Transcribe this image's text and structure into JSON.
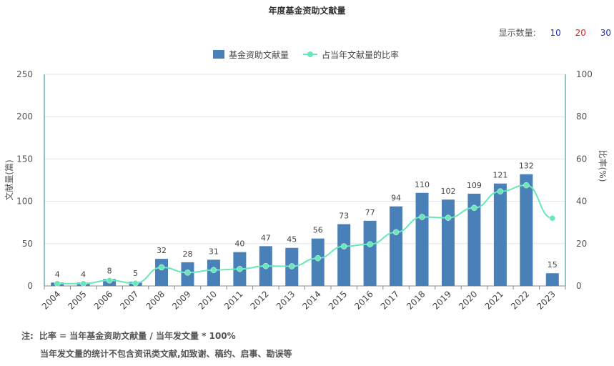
{
  "title": "年度基金资助文献量",
  "display_count": {
    "label": "显示数量:",
    "options": [
      "10",
      "20",
      "30"
    ]
  },
  "notes": {
    "prefix": "注:",
    "line1": "比率 = 当年基金资助文献量 / 当年发文量 * 100%",
    "line2": "当年发文量的统计不包含资讯类文献,如致谢、稿约、启事、勘误等"
  },
  "colors": {
    "bar": "#4a80b8",
    "line": "#66e8b8",
    "axis": "#1f8a8a",
    "grid": "#e3e3e3"
  },
  "chart_data": {
    "type": "bar",
    "title": "年度基金资助文献量",
    "categories": [
      "2004",
      "2005",
      "2006",
      "2007",
      "2008",
      "2009",
      "2010",
      "2011",
      "2012",
      "2013",
      "2014",
      "2015",
      "2016",
      "2017",
      "2018",
      "2019",
      "2020",
      "2021",
      "2022",
      "2023"
    ],
    "series": [
      {
        "name": "基金资助文献量",
        "type": "bar",
        "axis": "left",
        "values": [
          4,
          4,
          8,
          5,
          32,
          28,
          31,
          40,
          47,
          45,
          56,
          73,
          77,
          94,
          110,
          102,
          109,
          121,
          132,
          15
        ]
      },
      {
        "name": "占当年文献量的比率",
        "type": "line",
        "axis": "right",
        "values": [
          1.1,
          1.1,
          2.6,
          1.3,
          8.8,
          6.3,
          7.5,
          8.0,
          9.4,
          9.3,
          13.1,
          18.7,
          19.7,
          25.4,
          32.6,
          32.2,
          36.9,
          44.7,
          47.6,
          32.0
        ]
      }
    ],
    "ylabel": "文献量(篇)",
    "y2label": "比率(%)",
    "ylim": [
      0,
      250
    ],
    "y2lim": [
      0,
      100
    ],
    "yticks": [
      0,
      50,
      100,
      150,
      200,
      250
    ],
    "y2ticks": [
      0,
      20,
      40,
      60,
      80,
      100
    ],
    "grid": true,
    "legend_position": "top-center"
  }
}
